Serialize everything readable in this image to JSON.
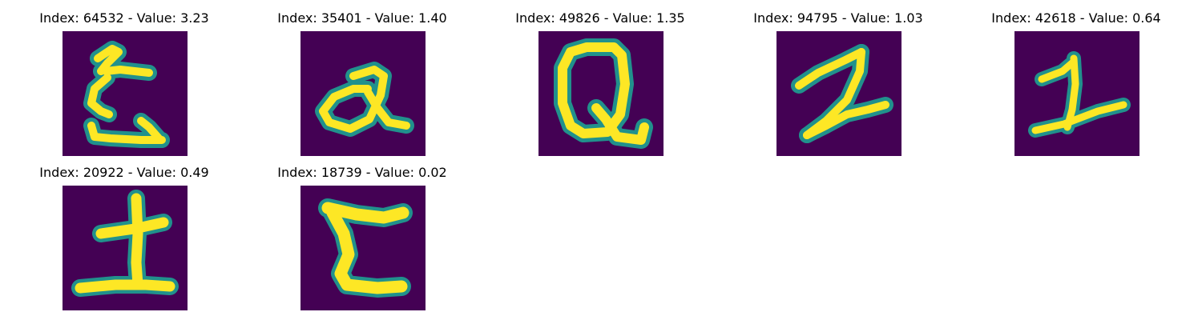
{
  "figure": {
    "background": "#ffffff",
    "colormap": {
      "name": "viridis",
      "low": "#440154",
      "mid": "#21918c",
      "high": "#fde725"
    },
    "panels": [
      {
        "title": "Index: 64532 - Value: 3.23",
        "index": 64532,
        "value": 3.23,
        "glyph": "handwritten-ze-like-character"
      },
      {
        "title": "Index: 35401 - Value: 1.40",
        "index": 35401,
        "value": 1.4,
        "glyph": "handwritten-a-like-character"
      },
      {
        "title": "Index: 49826 - Value: 1.35",
        "index": 49826,
        "value": 1.35,
        "glyph": "handwritten-q-like-character"
      },
      {
        "title": "Index: 94795 - Value: 1.03",
        "index": 94795,
        "value": 1.03,
        "glyph": "handwritten-two-like-character"
      },
      {
        "title": "Index: 42618 - Value: 0.64",
        "index": 42618,
        "value": 0.64,
        "glyph": "handwritten-one-like-character"
      },
      {
        "title": "Index: 20922 - Value: 0.49",
        "index": 20922,
        "value": 0.49,
        "glyph": "handwritten-tsuchi-like-character"
      },
      {
        "title": "Index: 18739 - Value: 0.02",
        "index": 18739,
        "value": 0.02,
        "glyph": "handwritten-ko-like-character"
      }
    ]
  }
}
